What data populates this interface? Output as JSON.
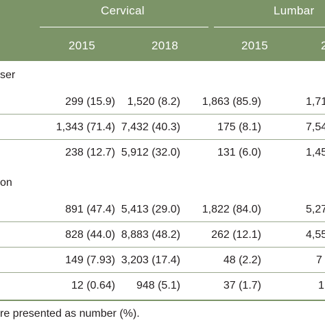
{
  "header": {
    "groups": [
      "Cervical",
      "Lumbar"
    ],
    "years": [
      "2015",
      "2018",
      "2015",
      "2"
    ]
  },
  "sections": [
    {
      "label": "ser",
      "rows": [
        [
          "299 (15.9)",
          "1,520 (8.2)",
          "1,863 (85.9)",
          "1,71"
        ],
        [
          "1,343 (71.4)",
          "7,432 (40.3)",
          "175 (8.1)",
          "7,54"
        ],
        [
          "238 (12.7)",
          "5,912 (32.0)",
          "131 (6.0)",
          "1,45"
        ]
      ]
    },
    {
      "label": "on",
      "rows": [
        [
          "891 (47.4)",
          "5,413 (29.0)",
          "1,822 (84.0)",
          "5,27"
        ],
        [
          "828 (44.0)",
          "8,883 (48.2)",
          "262 (12.1)",
          "4,55"
        ],
        [
          "149 (7.93)",
          "3,203 (17.4)",
          "48 (2.2)",
          "7"
        ],
        [
          "12 (0.64)",
          "948 (5.1)",
          "37 (1.7)",
          "1"
        ]
      ]
    }
  ],
  "footnote": "re presented as number (%)."
}
